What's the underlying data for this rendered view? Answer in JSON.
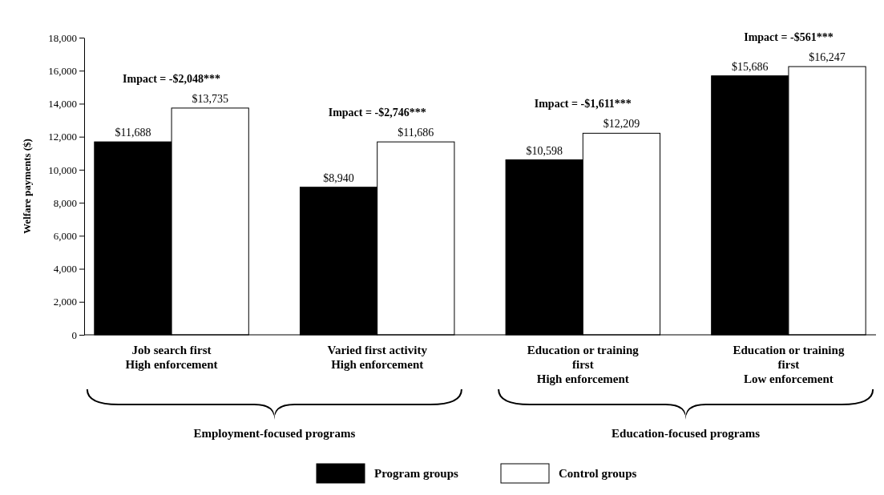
{
  "chart_data": {
    "type": "bar",
    "ylabel": "Welfare payments ($)",
    "categories": [
      "Job search first\nHigh enforcement",
      "Varied first activity\nHigh enforcement",
      "Education or training\nfirst\nHigh enforcement",
      "Education or training\nfirst\nLow enforcement"
    ],
    "series": [
      {
        "name": "Program groups",
        "color": "#000000",
        "values": [
          11688,
          8940,
          10598,
          15686
        ],
        "value_labels": [
          "$11,688",
          "$8,940",
          "$10,598",
          "$15,686"
        ]
      },
      {
        "name": "Control groups",
        "color": "#ffffff",
        "values": [
          13735,
          11686,
          12209,
          16247
        ],
        "value_labels": [
          "$13,735",
          "$11,686",
          "$12,209",
          "$16,247"
        ]
      }
    ],
    "ylim": [
      0,
      18000
    ],
    "yticks": [
      0,
      {
        "value": 2000,
        "label": "2,000"
      },
      {
        "value": 4000,
        "label": "4,000"
      },
      {
        "value": 6000,
        "label": "6,000"
      },
      {
        "value": 8000,
        "label": "8,000"
      },
      {
        "value": 10000,
        "label": "10,000"
      },
      {
        "value": 12000,
        "label": "12,000"
      },
      {
        "value": 14000,
        "label": "14,000"
      },
      {
        "value": 16000,
        "label": "16,000"
      },
      {
        "value": 18000,
        "label": "18,000"
      }
    ],
    "annotations": [
      "Impact = -$2,048***",
      "Impact = -$2,746***",
      "Impact = -$1,611***",
      "Impact = -$561***",
      "Employment-focused programs",
      "Education-focused programs"
    ],
    "grid": false,
    "legend": "bottom"
  }
}
